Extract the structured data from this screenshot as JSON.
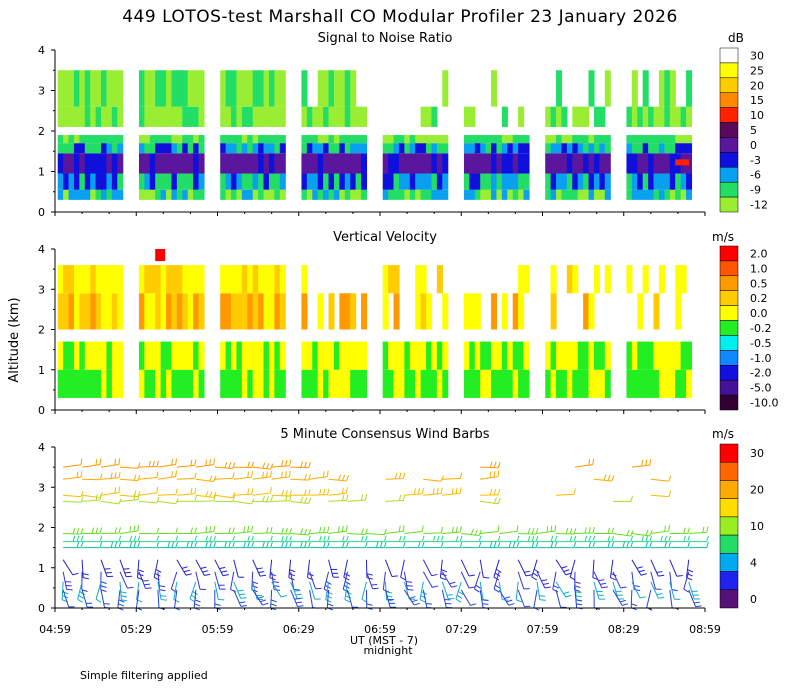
{
  "title": "449 LOTOS-test Marshall CO Modular Profiler 23 January 2026",
  "note": "Simple filtering applied",
  "y_axis_label": "Altitude (km)",
  "x_axis_label": "UT (MST - 7)",
  "x_sub_label": "midnight",
  "chart_data": [
    {
      "type": "heatmap",
      "title": "Signal to Noise Ratio",
      "units": "dB",
      "ylim": [
        0,
        4
      ],
      "y_ticks": [
        0,
        1,
        2,
        3,
        4
      ],
      "x_ticks": [
        "04:59",
        "05:29",
        "05:59",
        "06:29",
        "06:59",
        "07:29",
        "07:59",
        "08:29",
        "08:59"
      ],
      "scale": [
        {
          "label": "30",
          "color": "#ffffff"
        },
        {
          "label": "25",
          "color": "#ffff00"
        },
        {
          "label": "20",
          "color": "#ffcc00"
        },
        {
          "label": "15",
          "color": "#ff8800"
        },
        {
          "label": "10",
          "color": "#ff2200"
        },
        {
          "label": "5",
          "color": "#5a0a5a"
        },
        {
          "label": "0",
          "color": "#5a169c"
        },
        {
          "label": "-3",
          "color": "#1010dd"
        },
        {
          "label": "-6",
          "color": "#0aa0f0"
        },
        {
          "label": "-9",
          "color": "#22dd66"
        },
        {
          "label": "-12",
          "color": "#99ee33"
        }
      ],
      "profiles": [
        {
          "start": "05:00",
          "end": "05:24"
        },
        {
          "start": "05:30",
          "end": "05:54"
        },
        {
          "start": "06:00",
          "end": "06:24"
        },
        {
          "start": "06:30",
          "end": "06:54"
        },
        {
          "start": "07:00",
          "end": "07:24"
        },
        {
          "start": "07:30",
          "end": "07:54"
        },
        {
          "start": "08:00",
          "end": "08:24"
        },
        {
          "start": "08:30",
          "end": "08:54"
        }
      ]
    },
    {
      "type": "heatmap",
      "title": "Vertical Velocity",
      "units": "m/s",
      "ylim": [
        0,
        4
      ],
      "y_ticks": [
        0,
        1,
        2,
        3,
        4
      ],
      "x_ticks": [
        "04:59",
        "05:29",
        "05:59",
        "06:29",
        "06:59",
        "07:29",
        "07:59",
        "08:29",
        "08:59"
      ],
      "scale": [
        {
          "label": "2.0",
          "color": "#ff0000"
        },
        {
          "label": "1.0",
          "color": "#ff5500"
        },
        {
          "label": "0.5",
          "color": "#ff9900"
        },
        {
          "label": "0.2",
          "color": "#ffcc00"
        },
        {
          "label": "0.0",
          "color": "#ffff00"
        },
        {
          "label": "-0.2",
          "color": "#22ee22"
        },
        {
          "label": "-0.5",
          "color": "#00eeee"
        },
        {
          "label": "-1.0",
          "color": "#1188ff"
        },
        {
          "label": "-2.0",
          "color": "#1111dd"
        },
        {
          "label": "-5.0",
          "color": "#441199"
        },
        {
          "label": "-10.0",
          "color": "#330033"
        }
      ]
    },
    {
      "type": "wind-barbs",
      "title": "5 Minute Consensus Wind Barbs",
      "units": "m/s",
      "ylim": [
        0,
        4
      ],
      "y_ticks": [
        0,
        1,
        2,
        3,
        4
      ],
      "x_ticks": [
        "04:59",
        "05:29",
        "05:59",
        "06:29",
        "06:59",
        "07:29",
        "07:59",
        "08:29",
        "08:59"
      ],
      "scale": [
        {
          "label": "30",
          "color": "#ff0000"
        },
        {
          "label": "",
          "color": "#ff6600"
        },
        {
          "label": "20",
          "color": "#ffaa00"
        },
        {
          "label": "",
          "color": "#ffdd00"
        },
        {
          "label": "10",
          "color": "#99ee22"
        },
        {
          "label": "",
          "color": "#22dd66"
        },
        {
          "label": "4",
          "color": "#00aaee"
        },
        {
          "label": "",
          "color": "#2222ee"
        },
        {
          "label": "0",
          "color": "#551177"
        }
      ],
      "levels": [
        {
          "alt": 3.5,
          "color": "#ff9900"
        },
        {
          "alt": 3.2,
          "color": "#ffaa00"
        },
        {
          "alt": 2.8,
          "color": "#ffbb00"
        },
        {
          "alt": 2.65,
          "color": "#aadd22"
        },
        {
          "alt": 1.85,
          "color": "#66dd22"
        },
        {
          "alt": 1.65,
          "color": "#22dd88"
        },
        {
          "alt": 1.5,
          "color": "#11bbaa"
        },
        {
          "alt": 1.2,
          "color": "#2222cc"
        },
        {
          "alt": 0.9,
          "color": "#3333dd"
        },
        {
          "alt": 0.65,
          "color": "#11aacc"
        },
        {
          "alt": 0.45,
          "color": "#2244dd"
        }
      ]
    }
  ]
}
